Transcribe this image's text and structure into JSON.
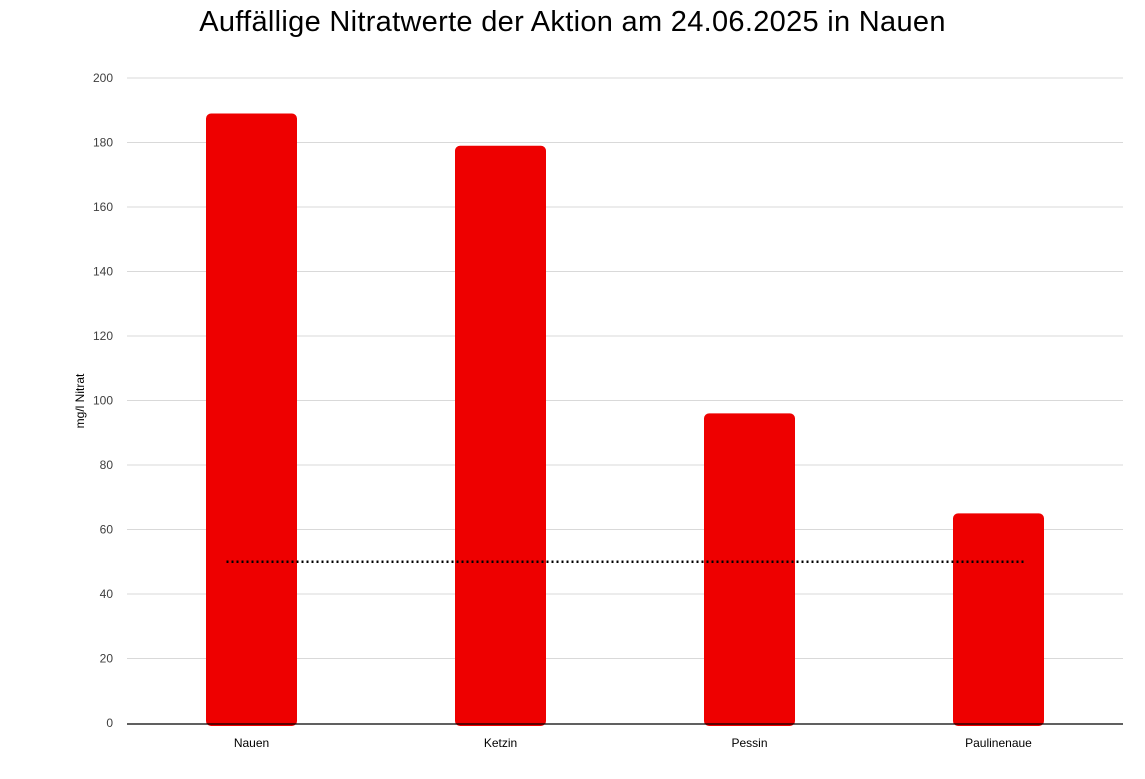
{
  "chart_data": {
    "type": "bar",
    "title": "Auffällige Nitratwerte der Aktion am 24.06.2025 in Nauen",
    "xlabel": "",
    "ylabel": "mg/l Nitrat",
    "categories": [
      "Nauen",
      "Ketzin",
      "Pessin",
      "Paulinenaue"
    ],
    "values": [
      189,
      179,
      96,
      65
    ],
    "ylim": [
      0,
      200
    ],
    "yticks": [
      "0",
      "20",
      "40",
      "60",
      "80",
      "100",
      "120",
      "140",
      "160",
      "180",
      "200"
    ],
    "reference_line": {
      "value": 50,
      "style": "dotted",
      "color": "#000000"
    },
    "bar_color": "#ee0000",
    "grid": true,
    "legend": "none"
  }
}
